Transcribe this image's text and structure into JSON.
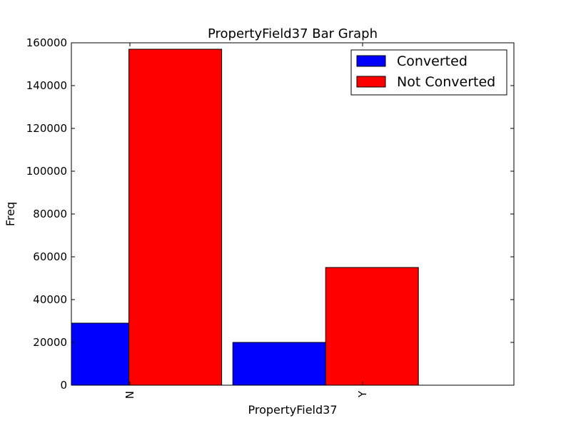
{
  "chart_data": {
    "type": "bar",
    "title": "PropertyField37 Bar Graph",
    "xlabel": "PropertyField37",
    "ylabel": "Freq",
    "categories": [
      "N",
      "Y"
    ],
    "series": [
      {
        "name": "Converted",
        "color": "#0000ff",
        "values": [
          29000,
          20000
        ]
      },
      {
        "name": "Not Converted",
        "color": "#ff0000",
        "values": [
          157000,
          55000
        ]
      }
    ],
    "ylim": [
      0,
      160000
    ],
    "yticks": [
      0,
      20000,
      40000,
      60000,
      80000,
      100000,
      120000,
      140000,
      160000
    ],
    "grid": false,
    "legend_position": "top-right"
  }
}
